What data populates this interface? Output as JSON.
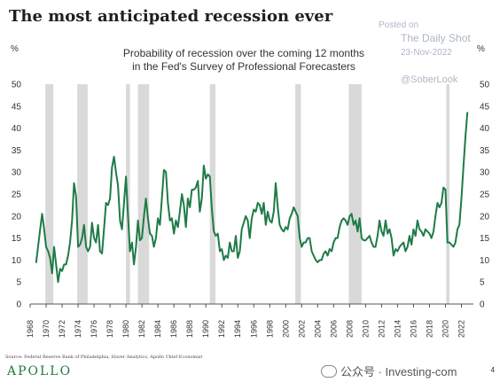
{
  "header": {
    "title": "The most anticipated recession ever",
    "subtitle_line1": "Probability of recession over the coming 12 months",
    "subtitle_line2": "in the Fed's Survey of Professional Forecasters"
  },
  "watermark": {
    "posted_on": "Posted on",
    "source": "The Daily Shot",
    "date": "23-Nov-2022",
    "handle": "@SoberLook"
  },
  "footer": {
    "source_text": "Source: Federal Reserve Bank of Philadelphia, Haver Analytics, Apollo Chief Economist",
    "brand": "APOLLO",
    "wechat_watermark": "公众号 · Investing-com",
    "page_number": "4"
  },
  "colors": {
    "line": "#1e7b47",
    "recession_band": "#d9d9d9",
    "brand": "#1a7a3c"
  },
  "chart_data": {
    "type": "line",
    "xlabel": "",
    "ylabel_left": "%",
    "ylabel_right": "%",
    "xlim": [
      1968,
      2023.5
    ],
    "ylim": [
      0,
      50
    ],
    "y_ticks": [
      0,
      5,
      10,
      15,
      20,
      25,
      30,
      35,
      40,
      45,
      50
    ],
    "x_ticks": [
      "1968",
      "1970",
      "1972",
      "1974",
      "1976",
      "1978",
      "1980",
      "1982",
      "1984",
      "1986",
      "1988",
      "1990",
      "1992",
      "1994",
      "1996",
      "1998",
      "2000",
      "2002",
      "2004",
      "2006",
      "2008",
      "2010",
      "2012",
      "2014",
      "2016",
      "2018",
      "2020",
      "2022"
    ],
    "recession_periods": [
      [
        1969.9,
        1970.9
      ],
      [
        1973.9,
        1975.2
      ],
      [
        1980.0,
        1980.5
      ],
      [
        1981.5,
        1982.9
      ],
      [
        1990.5,
        1991.2
      ],
      [
        2001.2,
        2001.9
      ],
      [
        2007.9,
        2009.5
      ],
      [
        2020.1,
        2020.5
      ]
    ],
    "grid": false,
    "series": [
      {
        "points": [
          [
            1968.75,
            9.5
          ],
          [
            1969.25,
            17
          ],
          [
            1969.5,
            20.5
          ],
          [
            1969.75,
            17
          ],
          [
            1970.0,
            13
          ],
          [
            1970.25,
            12
          ],
          [
            1970.5,
            10.5
          ],
          [
            1970.75,
            7
          ],
          [
            1971.0,
            13
          ],
          [
            1971.25,
            9
          ],
          [
            1971.5,
            5
          ],
          [
            1971.75,
            8
          ],
          [
            1972.0,
            7.5
          ],
          [
            1972.25,
            9
          ],
          [
            1972.5,
            9
          ],
          [
            1972.75,
            11
          ],
          [
            1973.0,
            14
          ],
          [
            1973.25,
            19
          ],
          [
            1973.5,
            27.5
          ],
          [
            1973.75,
            24.5
          ],
          [
            1974.0,
            13
          ],
          [
            1974.25,
            13.5
          ],
          [
            1974.5,
            15
          ],
          [
            1974.75,
            18
          ],
          [
            1975.0,
            13
          ],
          [
            1975.25,
            12
          ],
          [
            1975.5,
            13
          ],
          [
            1975.75,
            18.5
          ],
          [
            1976.0,
            15
          ],
          [
            1976.25,
            14
          ],
          [
            1976.5,
            18
          ],
          [
            1976.75,
            12
          ],
          [
            1977.0,
            11.5
          ],
          [
            1977.25,
            17
          ],
          [
            1977.5,
            23
          ],
          [
            1977.75,
            22.5
          ],
          [
            1978.0,
            24
          ],
          [
            1978.25,
            31
          ],
          [
            1978.5,
            33.5
          ],
          [
            1978.75,
            30
          ],
          [
            1979.0,
            27
          ],
          [
            1979.25,
            19
          ],
          [
            1979.5,
            17
          ],
          [
            1979.75,
            23
          ],
          [
            1980.0,
            29
          ],
          [
            1980.25,
            20
          ],
          [
            1980.5,
            12
          ],
          [
            1980.75,
            14
          ],
          [
            1981.0,
            9
          ],
          [
            1981.25,
            13
          ],
          [
            1981.5,
            19
          ],
          [
            1981.75,
            14.5
          ],
          [
            1982.0,
            15
          ],
          [
            1982.25,
            20
          ],
          [
            1982.5,
            24
          ],
          [
            1982.75,
            19.5
          ],
          [
            1983.0,
            16
          ],
          [
            1983.25,
            15.5
          ],
          [
            1983.5,
            13
          ],
          [
            1983.75,
            15
          ],
          [
            1984.0,
            19.5
          ],
          [
            1984.25,
            18
          ],
          [
            1984.5,
            24
          ],
          [
            1984.75,
            30.5
          ],
          [
            1985.0,
            30
          ],
          [
            1985.25,
            23
          ],
          [
            1985.5,
            19
          ],
          [
            1985.75,
            19.5
          ],
          [
            1986.0,
            16
          ],
          [
            1986.25,
            19
          ],
          [
            1986.5,
            17.5
          ],
          [
            1986.75,
            21
          ],
          [
            1987.0,
            25
          ],
          [
            1987.25,
            22.5
          ],
          [
            1987.5,
            17.5
          ],
          [
            1987.75,
            24
          ],
          [
            1988.0,
            22
          ],
          [
            1988.25,
            26
          ],
          [
            1988.5,
            26
          ],
          [
            1988.75,
            26.5
          ],
          [
            1989.0,
            28
          ],
          [
            1989.25,
            21
          ],
          [
            1989.5,
            24
          ],
          [
            1989.75,
            31.5
          ],
          [
            1990.0,
            28.5
          ],
          [
            1990.25,
            29.5
          ],
          [
            1990.5,
            29
          ],
          [
            1990.75,
            21.5
          ],
          [
            1991.0,
            16.5
          ],
          [
            1991.25,
            15.5
          ],
          [
            1991.5,
            16
          ],
          [
            1991.75,
            12
          ],
          [
            1992.0,
            12.5
          ],
          [
            1992.25,
            10
          ],
          [
            1992.5,
            11
          ],
          [
            1992.75,
            10.5
          ],
          [
            1993.0,
            14
          ],
          [
            1993.25,
            12
          ],
          [
            1993.5,
            12
          ],
          [
            1993.75,
            15.5
          ],
          [
            1994.0,
            10.5
          ],
          [
            1994.25,
            12
          ],
          [
            1994.5,
            17
          ],
          [
            1994.75,
            18.5
          ],
          [
            1995.0,
            20
          ],
          [
            1995.25,
            19
          ],
          [
            1995.5,
            15
          ],
          [
            1995.75,
            19.5
          ],
          [
            1996.0,
            21.5
          ],
          [
            1996.25,
            21
          ],
          [
            1996.5,
            23
          ],
          [
            1996.75,
            22.5
          ],
          [
            1997.0,
            20.5
          ],
          [
            1997.25,
            23
          ],
          [
            1997.5,
            18
          ],
          [
            1997.75,
            21
          ],
          [
            1998.0,
            19
          ],
          [
            1998.25,
            18.5
          ],
          [
            1998.5,
            21
          ],
          [
            1998.75,
            27.5
          ],
          [
            1999.0,
            22
          ],
          [
            1999.25,
            18
          ],
          [
            1999.5,
            17
          ],
          [
            1999.75,
            16.5
          ],
          [
            2000.0,
            17.5
          ],
          [
            2000.25,
            17
          ],
          [
            2000.5,
            19.5
          ],
          [
            2000.75,
            20.5
          ],
          [
            2001.0,
            22
          ],
          [
            2001.25,
            21
          ],
          [
            2001.5,
            20
          ],
          [
            2001.75,
            15
          ],
          [
            2002.0,
            13
          ],
          [
            2002.25,
            14
          ],
          [
            2002.5,
            14
          ],
          [
            2002.75,
            15
          ],
          [
            2003.0,
            15
          ],
          [
            2003.25,
            12
          ],
          [
            2003.5,
            11
          ],
          [
            2003.75,
            10
          ],
          [
            2004.0,
            9.5
          ],
          [
            2004.25,
            10
          ],
          [
            2004.5,
            10
          ],
          [
            2004.75,
            11.5
          ],
          [
            2005.0,
            12
          ],
          [
            2005.25,
            11
          ],
          [
            2005.5,
            12.5
          ],
          [
            2005.75,
            12
          ],
          [
            2006.0,
            14
          ],
          [
            2006.25,
            15
          ],
          [
            2006.5,
            15
          ],
          [
            2006.75,
            17.5
          ],
          [
            2007.0,
            19
          ],
          [
            2007.25,
            19.5
          ],
          [
            2007.5,
            19
          ],
          [
            2007.75,
            18
          ],
          [
            2008.0,
            20
          ],
          [
            2008.25,
            20.5
          ],
          [
            2008.5,
            18
          ],
          [
            2008.75,
            19
          ],
          [
            2009.0,
            16.5
          ],
          [
            2009.25,
            19.5
          ],
          [
            2009.5,
            15
          ],
          [
            2009.75,
            14.5
          ],
          [
            2010.0,
            14.5
          ],
          [
            2010.25,
            15
          ],
          [
            2010.5,
            15.5
          ],
          [
            2010.75,
            14
          ],
          [
            2011.0,
            13
          ],
          [
            2011.25,
            13
          ],
          [
            2011.5,
            15.5
          ],
          [
            2011.75,
            19
          ],
          [
            2012.0,
            16.5
          ],
          [
            2012.25,
            15.5
          ],
          [
            2012.5,
            19
          ],
          [
            2012.75,
            16
          ],
          [
            2013.0,
            17
          ],
          [
            2013.25,
            15
          ],
          [
            2013.5,
            11
          ],
          [
            2013.75,
            12.5
          ],
          [
            2014.0,
            12
          ],
          [
            2014.25,
            13
          ],
          [
            2014.5,
            13.5
          ],
          [
            2014.75,
            14
          ],
          [
            2015.0,
            12
          ],
          [
            2015.25,
            13
          ],
          [
            2015.5,
            15.5
          ],
          [
            2015.75,
            13.5
          ],
          [
            2016.0,
            17
          ],
          [
            2016.25,
            15.5
          ],
          [
            2016.5,
            19
          ],
          [
            2016.75,
            17
          ],
          [
            2017.0,
            16.5
          ],
          [
            2017.25,
            15.5
          ],
          [
            2017.5,
            17
          ],
          [
            2017.75,
            16.5
          ],
          [
            2018.0,
            16
          ],
          [
            2018.25,
            15
          ],
          [
            2018.5,
            16.5
          ],
          [
            2018.75,
            20
          ],
          [
            2019.0,
            23
          ],
          [
            2019.25,
            22
          ],
          [
            2019.5,
            23
          ],
          [
            2019.75,
            26.5
          ],
          [
            2020.0,
            26
          ],
          [
            2020.25,
            14
          ],
          [
            2020.5,
            14
          ],
          [
            2020.75,
            13.5
          ],
          [
            2021.0,
            13
          ],
          [
            2021.25,
            14
          ],
          [
            2021.5,
            17
          ],
          [
            2021.75,
            18
          ],
          [
            2022.0,
            24
          ],
          [
            2022.25,
            31
          ],
          [
            2022.5,
            38
          ],
          [
            2022.75,
            43.5
          ]
        ]
      }
    ]
  }
}
